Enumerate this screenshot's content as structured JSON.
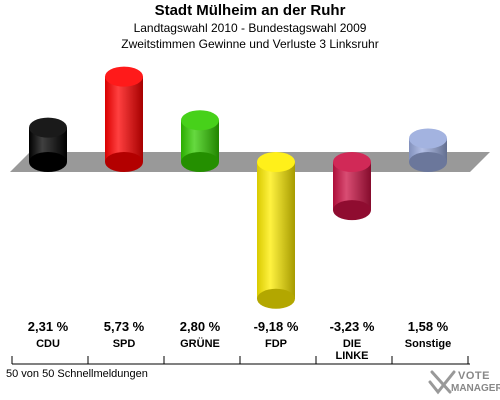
{
  "header": {
    "title": "Stadt Mülheim an der Ruhr",
    "subtitle1": "Landtagswahl 2010 - Bundestagswahl 2009",
    "subtitle2": "Zweitstimmen Gewinne und Verluste 3 Linksruhr"
  },
  "footer": {
    "text": "50 von 50 Schnellmeldungen"
  },
  "logo": {
    "line1": "VOTE",
    "line2": "MANAGER"
  },
  "chart_data": {
    "type": "bar",
    "title": "Stadt Mülheim an der Ruhr",
    "categories": [
      "CDU",
      "SPD",
      "GRÜNE",
      "FDP",
      "DIE LINKE",
      "Sonstige"
    ],
    "category_labels": [
      [
        "CDU"
      ],
      [
        "SPD"
      ],
      [
        "GRÜNE"
      ],
      [
        "FDP"
      ],
      [
        "DIE",
        "LINKE"
      ],
      [
        "Sonstige"
      ]
    ],
    "values": [
      2.31,
      5.73,
      2.8,
      -9.18,
      -3.23,
      1.58
    ],
    "value_labels": [
      "2,31 %",
      "5,73 %",
      "2,80 %",
      "-9,18 %",
      "-3,23 %",
      "1,58 %"
    ],
    "colors": [
      "#000000",
      "#ff0000",
      "#33cc00",
      "#ffee00",
      "#cc1144",
      "#99aadd"
    ],
    "unit": "%"
  }
}
